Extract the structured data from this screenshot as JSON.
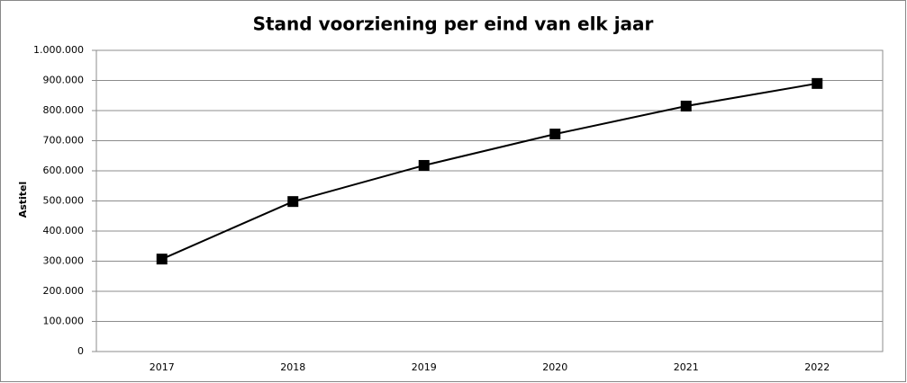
{
  "chart_data": {
    "type": "line",
    "title": "Stand voorziening per eind van elk jaar",
    "y_label": "Astitel",
    "categories": [
      "2017",
      "2018",
      "2019",
      "2020",
      "2021",
      "2022"
    ],
    "values": [
      307000,
      498000,
      618000,
      722000,
      815000,
      890000
    ],
    "color": "#000000",
    "ylim": [
      0,
      1000000
    ],
    "yticks": [
      0,
      {
        "value": 100000,
        "label": "100.000"
      },
      {
        "value": 200000,
        "label": "200.000"
      },
      {
        "value": 300000,
        "label": "300.000"
      },
      {
        "value": 400000,
        "label": "400.000"
      },
      {
        "value": 500000,
        "label": "500.000"
      },
      {
        "value": 600000,
        "label": "600.000"
      },
      {
        "value": 700000,
        "label": "700.000"
      },
      {
        "value": 800000,
        "label": "800.000"
      },
      {
        "value": 900000,
        "label": "900.000"
      },
      {
        "value": 1000000,
        "label": "1.000.000"
      }
    ],
    "grid": true
  }
}
